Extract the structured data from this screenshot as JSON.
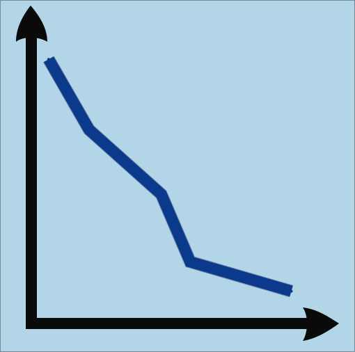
{
  "chart_data": {
    "type": "line",
    "title": "",
    "xlabel": "",
    "ylabel": "",
    "grid": false,
    "legend": "none",
    "xlim": [
      0,
      10
    ],
    "ylim": [
      0,
      10
    ],
    "series": [
      {
        "x": [
          0.6,
          2.0,
          4.5,
          5.5,
          9.0
        ],
        "y": [
          9.0,
          6.6,
          4.4,
          2.1,
          1.1
        ]
      }
    ]
  },
  "colors": {
    "background": "#b2d5e8",
    "frame_border": "#7a8a94",
    "axis": "#0a0a0a",
    "line": "#0b3a8c",
    "line_edge": "#6b7fa8"
  }
}
